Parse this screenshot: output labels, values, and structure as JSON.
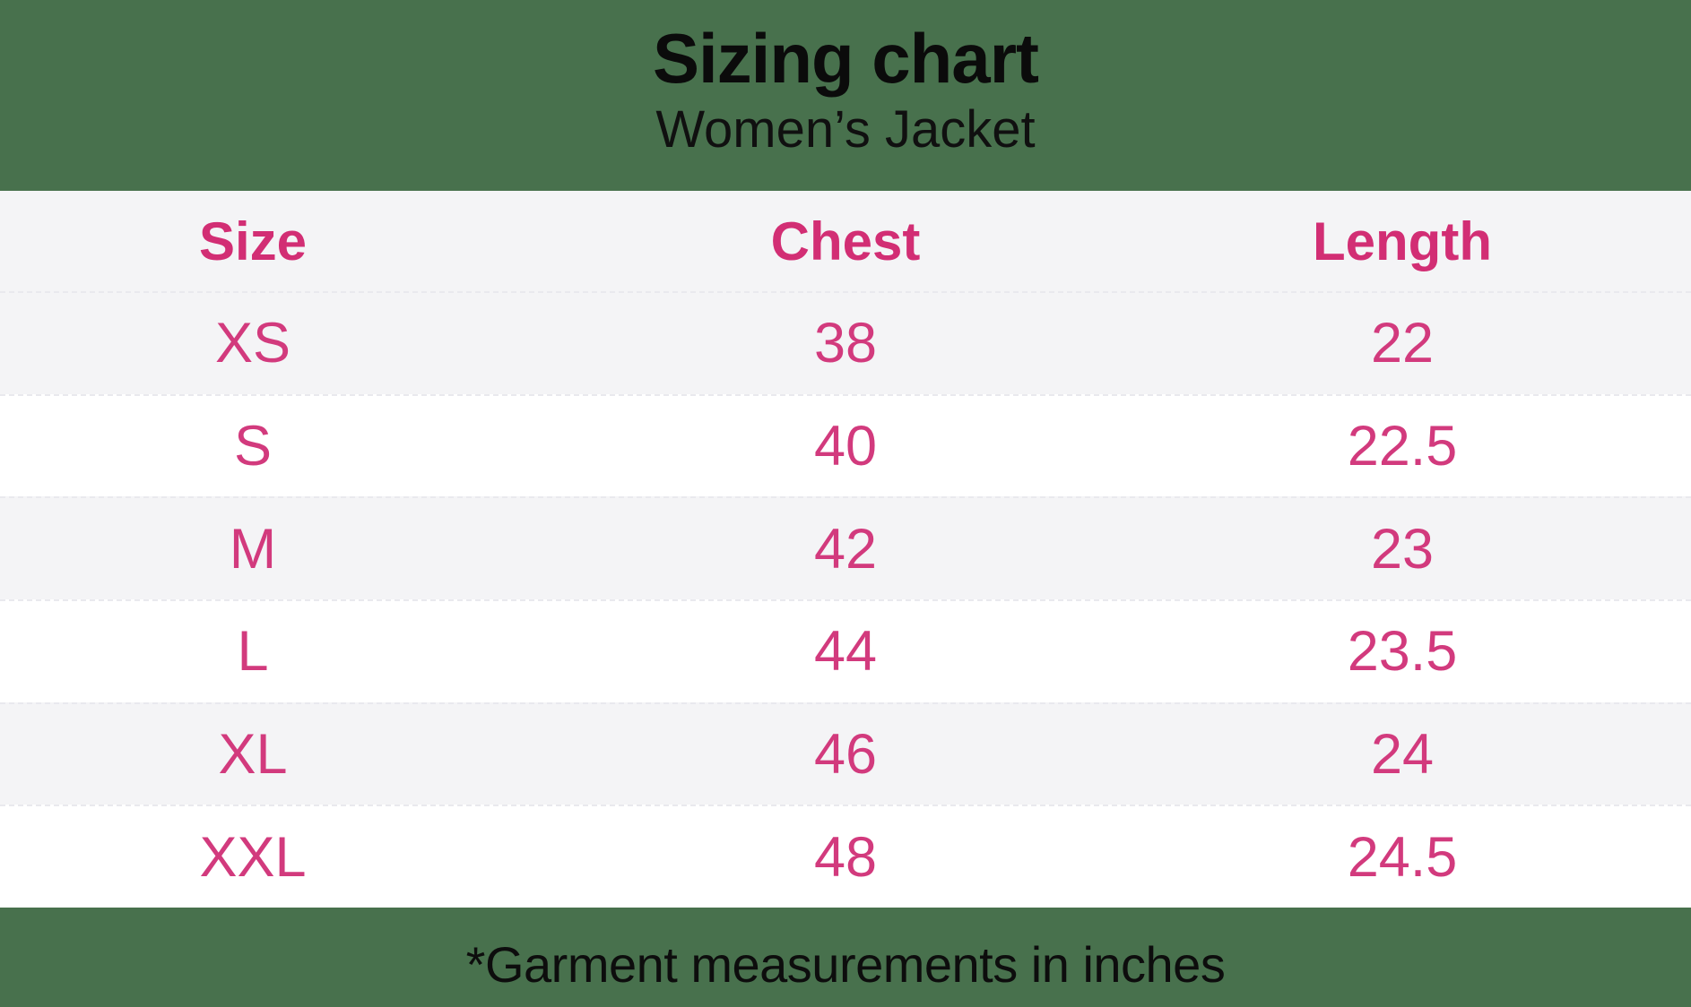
{
  "header": {
    "title": "Sizing chart",
    "subtitle": "Women’s Jacket"
  },
  "footnote": "*Garment measurements in inches",
  "table": {
    "columns": [
      "Size",
      "Chest",
      "Length"
    ],
    "rows": [
      {
        "size": "XS",
        "chest": "38",
        "length": "22"
      },
      {
        "size": "S",
        "chest": "40",
        "length": "22.5"
      },
      {
        "size": "M",
        "chest": "42",
        "length": "23"
      },
      {
        "size": "L",
        "chest": "44",
        "length": "23.5"
      },
      {
        "size": "XL",
        "chest": "46",
        "length": "24"
      },
      {
        "size": "XXL",
        "chest": "48",
        "length": "24.5"
      }
    ]
  },
  "chart_data": {
    "type": "table",
    "title": "Sizing chart",
    "subtitle": "Women's Jacket",
    "columns": [
      "Size",
      "Chest",
      "Length"
    ],
    "rows": [
      [
        "XS",
        38,
        22
      ],
      [
        "S",
        40,
        22.5
      ],
      [
        "M",
        42,
        23
      ],
      [
        "L",
        44,
        23.5
      ],
      [
        "XL",
        46,
        24
      ],
      [
        "XXL",
        48,
        24.5
      ]
    ],
    "footnote": "*Garment measurements in inches",
    "units": "inches"
  },
  "colors": {
    "background_green": "#48714d",
    "header_pink": "#d22e74",
    "value_pink": "#d23a7d",
    "row_gray": "#f4f4f6",
    "row_white": "#ffffff",
    "text_black": "#0b0b0b"
  }
}
